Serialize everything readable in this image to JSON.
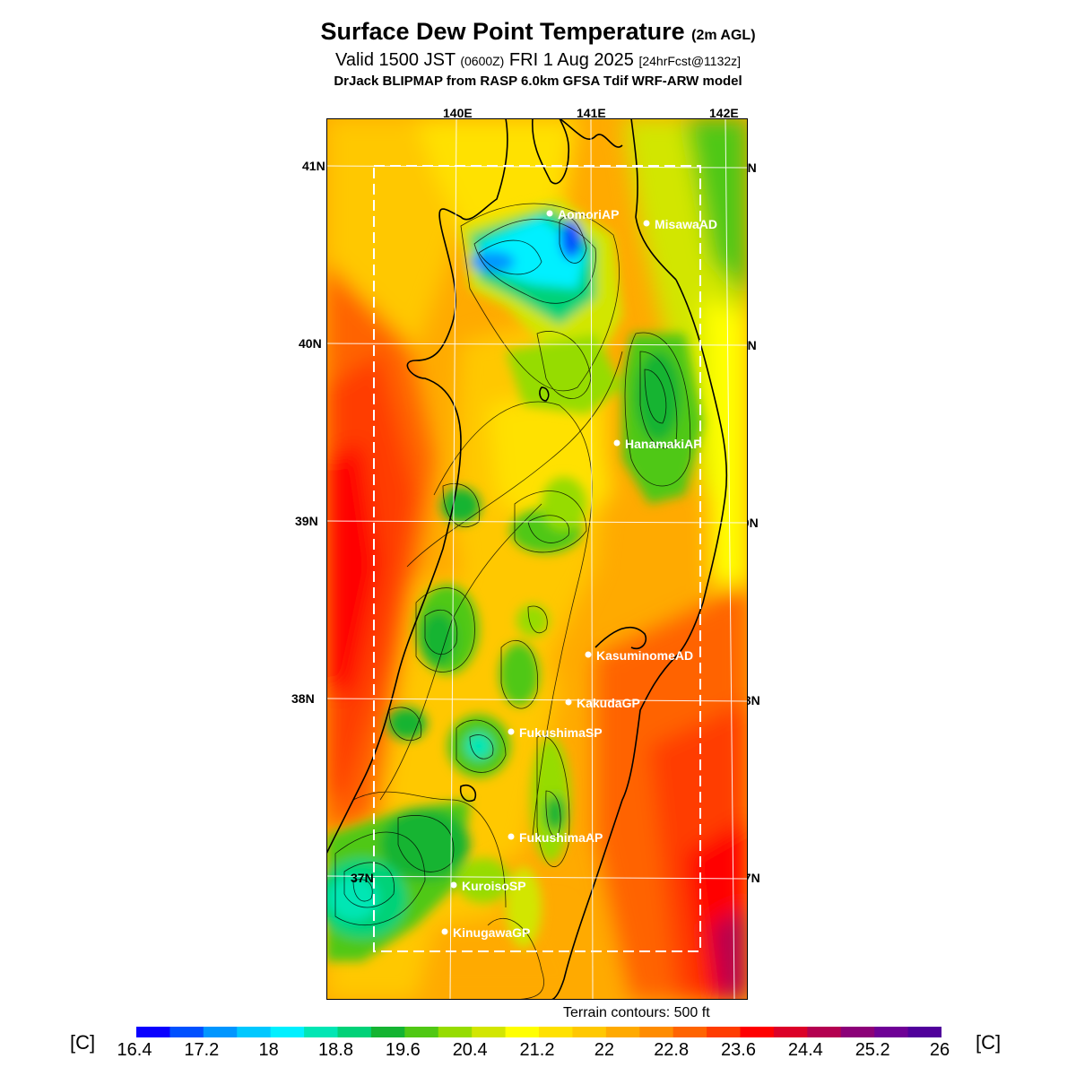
{
  "title": {
    "main": "Surface Dew Point Temperature",
    "main_suffix": "(2m AGL)",
    "valid_prefix": "Valid 1500 JST",
    "valid_utc": "(0600Z)",
    "valid_date": "FRI 1 Aug 2025",
    "forecast": "[24hrFcst@1132z]",
    "model_line": "DrJack BLIPMAP from RASP 6.0km GFSA Tdif WRF-ARW model"
  },
  "axes": {
    "lon_labels": [
      "140E",
      "141E",
      "142E"
    ],
    "lat_labels": [
      "41N",
      "40N",
      "39N",
      "38N",
      "37N"
    ]
  },
  "stations": [
    {
      "name": "AomoriAP"
    },
    {
      "name": "MisawaAD"
    },
    {
      "name": "HanamakiAP"
    },
    {
      "name": "KasuminomeAD"
    },
    {
      "name": "KakudaGP"
    },
    {
      "name": "FukushimaSP"
    },
    {
      "name": "FukushimaAP"
    },
    {
      "name": "KuroisoSP"
    },
    {
      "name": "KinugawaGP"
    }
  ],
  "terrain_note": "Terrain contours: 500 ft",
  "colorbar": {
    "unit": "[C]",
    "ticks": [
      "16.4",
      "17.2",
      "18",
      "18.8",
      "19.6",
      "20.4",
      "21.2",
      "22",
      "22.8",
      "23.6",
      "24.4",
      "25.2",
      "26"
    ],
    "colors": [
      "#0a00ff",
      "#0050ff",
      "#0096ff",
      "#00c8ff",
      "#00f0ff",
      "#00e6b4",
      "#00d278",
      "#14b432",
      "#50c814",
      "#96dc00",
      "#d2e600",
      "#ffff00",
      "#ffe100",
      "#ffc800",
      "#ffaa00",
      "#ff8c00",
      "#ff6400",
      "#ff3c00",
      "#ff0000",
      "#dc0028",
      "#b40050",
      "#8c0078",
      "#6e0096",
      "#50009b"
    ]
  }
}
